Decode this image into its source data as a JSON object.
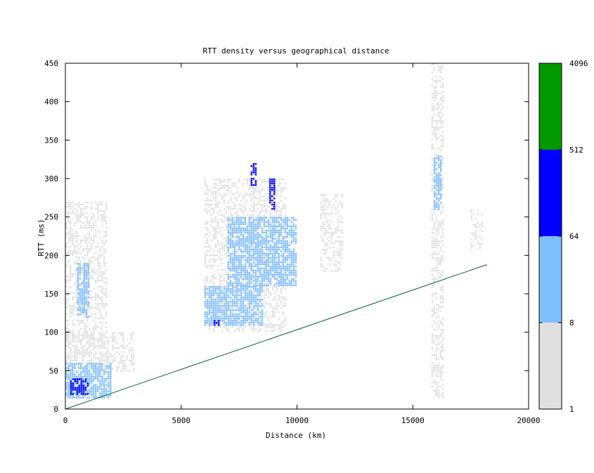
{
  "chart_data": {
    "type": "heatmap",
    "title": "RTT density versus geographical distance",
    "xlabel": "Distance (km)",
    "ylabel": "RTT (ms)",
    "xlim": [
      0,
      20000
    ],
    "ylim": [
      0,
      450
    ],
    "x_ticks": [
      "0",
      "5000",
      "10000",
      "15000",
      "20000"
    ],
    "y_ticks": [
      "0",
      "50",
      "100",
      "150",
      "200",
      "250",
      "300",
      "350",
      "400",
      "450"
    ],
    "grid": false,
    "colorbar": {
      "scale": "log2",
      "range": [
        1,
        4096
      ],
      "ticks": [
        "1",
        "8",
        "64",
        "512",
        "4096"
      ],
      "bins": [
        {
          "from": 1,
          "to": 8,
          "color": "#e0e0e0"
        },
        {
          "from": 8,
          "to": 64,
          "color": "#80bfff"
        },
        {
          "from": 64,
          "to": 512,
          "color": "#0000ff"
        },
        {
          "from": 512,
          "to": 4096,
          "color": "#009900"
        }
      ]
    },
    "reference_line": {
      "color": "#006633",
      "points": [
        [
          0,
          0
        ],
        [
          18200,
          188
        ]
      ]
    },
    "density_regions": [
      {
        "x": [
          0,
          2000
        ],
        "y": [
          15,
          60
        ],
        "level": "medium"
      },
      {
        "x": [
          200,
          1000
        ],
        "y": [
          20,
          40
        ],
        "level": "high"
      },
      {
        "x": [
          0,
          3000
        ],
        "y": [
          50,
          100
        ],
        "level": "low"
      },
      {
        "x": [
          0,
          1800
        ],
        "y": [
          60,
          270
        ],
        "level": "low"
      },
      {
        "x": [
          500,
          1000
        ],
        "y": [
          120,
          190
        ],
        "level": "medium"
      },
      {
        "x": [
          6000,
          9500
        ],
        "y": [
          100,
          300
        ],
        "level": "low"
      },
      {
        "x": [
          6000,
          8500
        ],
        "y": [
          110,
          160
        ],
        "level": "medium"
      },
      {
        "x": [
          7000,
          10000
        ],
        "y": [
          160,
          250
        ],
        "level": "medium"
      },
      {
        "x": [
          8000,
          8200
        ],
        "y": [
          290,
          320
        ],
        "level": "high"
      },
      {
        "x": [
          8800,
          9000
        ],
        "y": [
          260,
          300
        ],
        "level": "high"
      },
      {
        "x": [
          6400,
          6600
        ],
        "y": [
          108,
          116
        ],
        "level": "high"
      },
      {
        "x": [
          11000,
          12000
        ],
        "y": [
          180,
          280
        ],
        "level": "low"
      },
      {
        "x": [
          15800,
          16300
        ],
        "y": [
          15,
          450
        ],
        "level": "low"
      },
      {
        "x": [
          15900,
          16200
        ],
        "y": [
          260,
          330
        ],
        "level": "medium"
      },
      {
        "x": [
          17500,
          18000
        ],
        "y": [
          210,
          260
        ],
        "level": "low"
      }
    ]
  }
}
